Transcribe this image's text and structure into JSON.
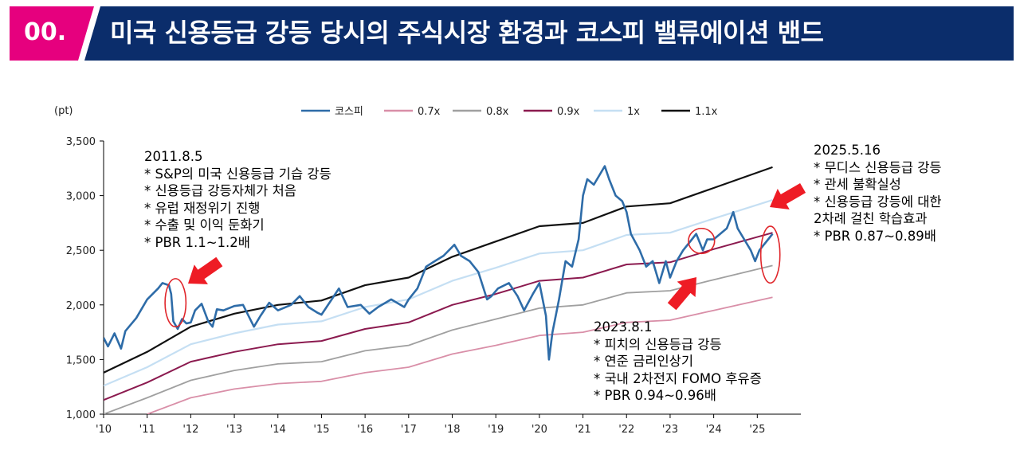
{
  "header": {
    "number": "00.",
    "title": "미국 신용등급 강등 당시의 주식시장 환경과 코스피 밸류에이션 밴드",
    "accent_color": "#e6007e",
    "bar_color": "#0b2d6b"
  },
  "chart_data": {
    "type": "line",
    "unit": "(pt)",
    "ylim": [
      1000,
      3500
    ],
    "yticks": [
      "1,000",
      "1,500",
      "2,000",
      "2,500",
      "3,000",
      "3,500"
    ],
    "ytick_values": [
      1000,
      1500,
      2000,
      2500,
      3000,
      3500
    ],
    "xlim": [
      2010.0,
      2026.0
    ],
    "xticks": [
      "'10",
      "'11",
      "'12",
      "'13",
      "'14",
      "'15",
      "'16",
      "'17",
      "'18",
      "'19",
      "'20",
      "'21",
      "'22",
      "'23",
      "'24",
      "'25"
    ],
    "xtick_values": [
      2010,
      2011,
      2012,
      2013,
      2014,
      2015,
      2016,
      2017,
      2018,
      2019,
      2020,
      2021,
      2022,
      2023,
      2024,
      2025
    ],
    "legend_position": "top-center",
    "grid": false,
    "series": [
      {
        "name": "코스피",
        "color": "#2e6ca8",
        "width": 2.6,
        "x": [
          2010.0,
          2010.1,
          2010.25,
          2010.4,
          2010.5,
          2010.75,
          2011.0,
          2011.25,
          2011.35,
          2011.5,
          2011.55,
          2011.6,
          2011.7,
          2011.8,
          2011.9,
          2012.0,
          2012.1,
          2012.25,
          2012.4,
          2012.5,
          2012.6,
          2012.75,
          2013.0,
          2013.2,
          2013.45,
          2013.6,
          2013.8,
          2014.0,
          2014.3,
          2014.5,
          2014.7,
          2014.9,
          2015.0,
          2015.25,
          2015.4,
          2015.6,
          2015.9,
          2016.1,
          2016.3,
          2016.6,
          2016.9,
          2017.0,
          2017.2,
          2017.4,
          2017.6,
          2017.8,
          2017.9,
          2018.05,
          2018.2,
          2018.4,
          2018.6,
          2018.8,
          2018.9,
          2019.05,
          2019.3,
          2019.5,
          2019.65,
          2019.85,
          2020.0,
          2020.15,
          2020.22,
          2020.3,
          2020.45,
          2020.6,
          2020.75,
          2020.9,
          2021.0,
          2021.1,
          2021.25,
          2021.5,
          2021.6,
          2021.75,
          2021.9,
          2022.0,
          2022.1,
          2022.3,
          2022.45,
          2022.6,
          2022.75,
          2022.9,
          2023.0,
          2023.15,
          2023.3,
          2023.5,
          2023.6,
          2023.75,
          2023.85,
          2024.0,
          2024.15,
          2024.3,
          2024.45,
          2024.55,
          2024.7,
          2024.85,
          2024.95,
          2025.05,
          2025.15,
          2025.25,
          2025.35
        ],
        "y": [
          1700,
          1620,
          1740,
          1600,
          1760,
          1880,
          2050,
          2150,
          2200,
          2180,
          2100,
          1850,
          1780,
          1870,
          1830,
          1840,
          1950,
          2010,
          1850,
          1800,
          1960,
          1950,
          1990,
          2000,
          1800,
          1900,
          2020,
          1950,
          2000,
          2080,
          1980,
          1930,
          1910,
          2060,
          2150,
          1980,
          2000,
          1920,
          1980,
          2050,
          1980,
          2050,
          2150,
          2350,
          2400,
          2450,
          2490,
          2550,
          2450,
          2400,
          2300,
          2050,
          2080,
          2150,
          2200,
          2080,
          1950,
          2100,
          2200,
          1900,
          1500,
          1750,
          2050,
          2400,
          2350,
          2600,
          3000,
          3150,
          3100,
          3270,
          3150,
          3000,
          2950,
          2850,
          2650,
          2500,
          2350,
          2400,
          2200,
          2400,
          2250,
          2400,
          2500,
          2600,
          2650,
          2500,
          2600,
          2600,
          2650,
          2700,
          2850,
          2700,
          2600,
          2500,
          2400,
          2500,
          2550,
          2600,
          2650
        ]
      },
      {
        "name": "0.7x",
        "color": "#d98fa8",
        "width": 1.8,
        "x": [
          2011.0,
          2012.0,
          2013.0,
          2014.0,
          2015.0,
          2016.0,
          2017.0,
          2018.0,
          2019.0,
          2020.0,
          2021.0,
          2022.0,
          2023.0,
          2024.0,
          2025.35
        ],
        "y": [
          1000,
          1150,
          1230,
          1280,
          1300,
          1380,
          1430,
          1550,
          1630,
          1720,
          1750,
          1840,
          1860,
          1950,
          2070
        ]
      },
      {
        "name": "0.8x",
        "color": "#a0a0a0",
        "width": 1.8,
        "x": [
          2010.0,
          2011.0,
          2012.0,
          2013.0,
          2014.0,
          2015.0,
          2016.0,
          2017.0,
          2018.0,
          2019.0,
          2020.0,
          2021.0,
          2022.0,
          2023.0,
          2024.0,
          2025.35
        ],
        "y": [
          1000,
          1150,
          1310,
          1400,
          1460,
          1480,
          1580,
          1630,
          1770,
          1870,
          1970,
          2000,
          2110,
          2130,
          2230,
          2360
        ]
      },
      {
        "name": "0.9x",
        "color": "#8b1a4f",
        "width": 2,
        "x": [
          2010.0,
          2011.0,
          2012.0,
          2013.0,
          2014.0,
          2015.0,
          2016.0,
          2017.0,
          2018.0,
          2019.0,
          2020.0,
          2021.0,
          2022.0,
          2023.0,
          2024.0,
          2025.35
        ],
        "y": [
          1130,
          1290,
          1480,
          1570,
          1640,
          1670,
          1780,
          1840,
          2000,
          2100,
          2220,
          2250,
          2370,
          2390,
          2510,
          2660
        ]
      },
      {
        "name": "1x",
        "color": "#c5dff3",
        "width": 2.2,
        "x": [
          2010.0,
          2011.0,
          2012.0,
          2013.0,
          2014.0,
          2015.0,
          2016.0,
          2017.0,
          2018.0,
          2019.0,
          2020.0,
          2021.0,
          2022.0,
          2023.0,
          2024.0,
          2025.35
        ],
        "y": [
          1260,
          1430,
          1640,
          1740,
          1820,
          1850,
          1980,
          2050,
          2220,
          2340,
          2470,
          2500,
          2640,
          2660,
          2790,
          2960
        ]
      },
      {
        "name": "1.1x",
        "color": "#111111",
        "width": 2.2,
        "x": [
          2010.0,
          2011.0,
          2012.0,
          2013.0,
          2014.0,
          2015.0,
          2016.0,
          2017.0,
          2018.0,
          2019.0,
          2020.0,
          2021.0,
          2022.0,
          2023.0,
          2024.0,
          2025.35
        ],
        "y": [
          1380,
          1570,
          1800,
          1920,
          2000,
          2040,
          2180,
          2250,
          2440,
          2580,
          2720,
          2750,
          2900,
          2930,
          3070,
          3260
        ]
      }
    ],
    "legend": [
      "코스피",
      "0.7x",
      "0.8x",
      "0.9x",
      "1x",
      "1.1x"
    ],
    "highlight_ellipses": [
      {
        "label": "2011.8.5",
        "x_center": 2011.65,
        "y_center": 2020,
        "x_radius": 0.24,
        "y_radius": 220
      },
      {
        "label": "2023.8.1",
        "x_center": 2023.72,
        "y_center": 2585,
        "x_radius": 0.3,
        "y_radius": 115
      },
      {
        "label": "2025.5.16",
        "x_center": 2025.3,
        "y_center": 2460,
        "x_radius": 0.22,
        "y_radius": 260
      }
    ],
    "annotations": [
      {
        "id": "a2011",
        "lines": [
          "2011.8.5",
          "* S&P의 미국 신용등급 기습 강등",
          "* 신용등급 강등자체가 처음",
          "* 유럽 재정위기 진행",
          "* 수출 및 이익 둔화기",
          "* PBR 1.1~1.2배"
        ]
      },
      {
        "id": "a2023",
        "lines": [
          "2023.8.1",
          "* 피치의 신용등급 강등",
          "* 연준 금리인상기",
          "* 국내 2차전지 FOMO 후유증",
          "* PBR 0.94~0.96배"
        ]
      },
      {
        "id": "a2025",
        "lines": [
          "2025.5.16",
          "* 무디스 신용등급 강등",
          "* 관세 불확실성",
          "* 신용등급 강등에 대한",
          "2차례 걸친 학습효과",
          "* PBR 0.87~0.89배"
        ]
      }
    ],
    "arrow_color": "#ee1c25",
    "ellipse_color": "#e0262b"
  }
}
